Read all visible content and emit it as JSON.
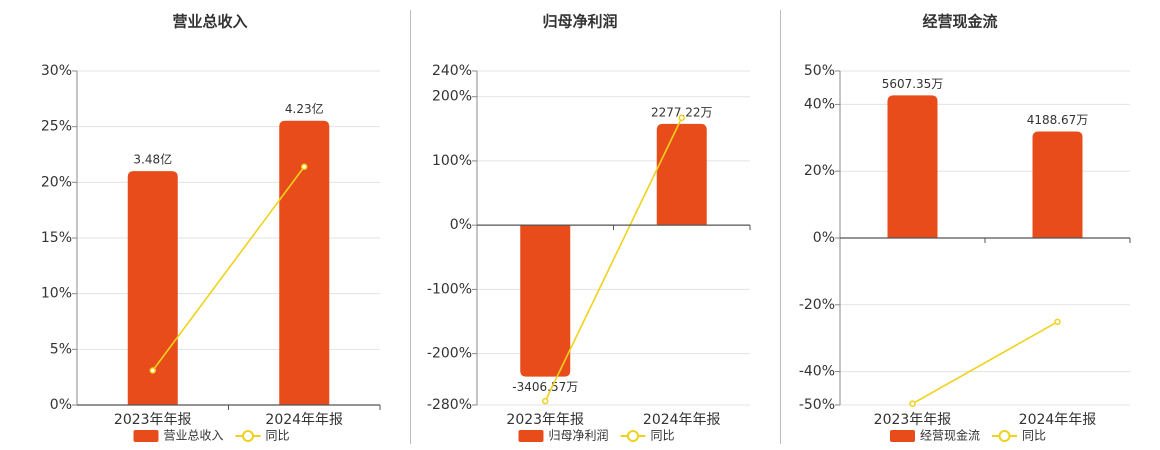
{
  "chart_data": [
    {
      "type": "bar",
      "title": "营业总收入",
      "categories": [
        "2023年年报",
        "2024年年报"
      ],
      "series": [
        {
          "name": "营业总收入",
          "type": "bar",
          "axis": "y2",
          "color": "#e84c1a",
          "values": [
            3.48,
            4.23
          ],
          "value_labels": [
            "3.48亿",
            "4.23亿"
          ]
        },
        {
          "name": "同比",
          "type": "line",
          "color": "#f0d21c",
          "values": [
            3.1,
            21.4
          ]
        }
      ],
      "ylim": [
        0,
        30
      ],
      "yticks": [
        {
          "value": 0,
          "label": "0%"
        },
        {
          "value": 5,
          "label": "5%"
        },
        {
          "value": 10,
          "label": "10%"
        },
        {
          "value": 15,
          "label": "15%"
        },
        {
          "value": 20,
          "label": "20%"
        },
        {
          "value": 25,
          "label": "25%"
        },
        {
          "value": 30,
          "label": "30%"
        }
      ],
      "y2lim": [
        0,
        4.97
      ],
      "grid": true
    },
    {
      "type": "bar",
      "title": "归母净利润",
      "categories": [
        "2023年年报",
        "2024年年报"
      ],
      "series": [
        {
          "name": "归母净利润",
          "type": "bar",
          "axis": "y2",
          "color": "#e84c1a",
          "values": [
            -3406.57,
            2277.22
          ],
          "value_labels": [
            "-3406.57万",
            "2277.22万"
          ]
        },
        {
          "name": "同比",
          "type": "line",
          "color": "#f0d21c",
          "values": [
            -274,
            167
          ]
        }
      ],
      "ylim": [
        -280,
        240
      ],
      "yticks": [
        {
          "value": -280,
          "label": "-280%"
        },
        {
          "value": -200,
          "label": "-200%"
        },
        {
          "value": -100,
          "label": "-100%"
        },
        {
          "value": 0,
          "label": "0%"
        },
        {
          "value": 100,
          "label": "100%"
        },
        {
          "value": 200,
          "label": "200%"
        },
        {
          "value": 240,
          "label": "240%"
        }
      ],
      "y2lim": [
        -4046,
        3468
      ],
      "grid": true
    },
    {
      "type": "bar",
      "title": "经营现金流",
      "categories": [
        "2023年年报",
        "2024年年报"
      ],
      "series": [
        {
          "name": "经营现金流",
          "type": "bar",
          "axis": "y2",
          "color": "#e84c1a",
          "values": [
            5607.35,
            4188.67
          ],
          "value_labels": [
            "5607.35万",
            "4188.67万"
          ]
        },
        {
          "name": "同比",
          "type": "line",
          "color": "#f0d21c",
          "values": [
            -49.6,
            -25.1
          ]
        }
      ],
      "ylim": [
        -50,
        50
      ],
      "yticks": [
        {
          "value": -50,
          "label": "-50%"
        },
        {
          "value": -40,
          "label": "-40%"
        },
        {
          "value": -20,
          "label": "-20%"
        },
        {
          "value": 0,
          "label": "0%"
        },
        {
          "value": 20,
          "label": "20%"
        },
        {
          "value": 40,
          "label": "40%"
        },
        {
          "value": 50,
          "label": "50%"
        }
      ],
      "y2lim": [
        -6565,
        6565
      ],
      "grid": true
    }
  ]
}
